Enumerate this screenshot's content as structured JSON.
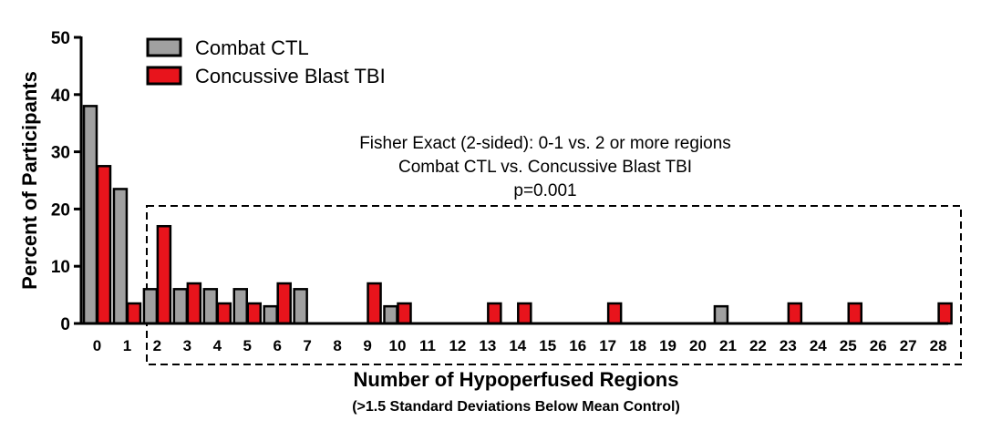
{
  "chart_data": {
    "type": "bar",
    "title": "",
    "xlabel": "Number of Hypoperfused Regions",
    "xlabel_sub": "(>1.5 Standard Deviations Below Mean Control)",
    "ylabel": "Percent of Participants",
    "ylim": [
      0,
      50
    ],
    "yticks": [
      0,
      10,
      20,
      30,
      40,
      50
    ],
    "categories": [
      "0",
      "1",
      "2",
      "3",
      "4",
      "5",
      "6",
      "7",
      "8",
      "9",
      "10",
      "11",
      "12",
      "13",
      "14",
      "15",
      "16",
      "17",
      "18",
      "19",
      "20",
      "21",
      "22",
      "23",
      "24",
      "25",
      "26",
      "27",
      "28"
    ],
    "series": [
      {
        "name": "Combat CTL",
        "color": "#a0a0a0",
        "values": [
          38,
          23.5,
          6,
          6,
          6,
          6,
          3,
          6,
          0,
          0,
          3,
          0,
          0,
          0,
          0,
          0,
          0,
          0,
          0,
          0,
          0,
          3,
          0,
          0,
          0,
          0,
          0,
          0,
          0
        ]
      },
      {
        "name": "Concussive Blast TBI",
        "color": "#e8141c",
        "values": [
          27.5,
          3.5,
          17,
          7,
          3.5,
          3.5,
          7,
          0,
          0,
          7,
          3.5,
          0,
          0,
          3.5,
          3.5,
          0,
          0,
          3.5,
          0,
          0,
          0,
          0,
          0,
          3.5,
          0,
          3.5,
          0,
          0,
          3.5
        ]
      }
    ],
    "legend_position": "top-left",
    "grid": false,
    "annotation": {
      "lines": [
        "Fisher Exact (2-sided): 0-1 vs. 2 or more regions",
        "Combat CTL vs. Concussive Blast TBI",
        "p=0.001"
      ],
      "box_from_category": "2",
      "box_to_category": "28",
      "box_style": "dashed"
    }
  }
}
